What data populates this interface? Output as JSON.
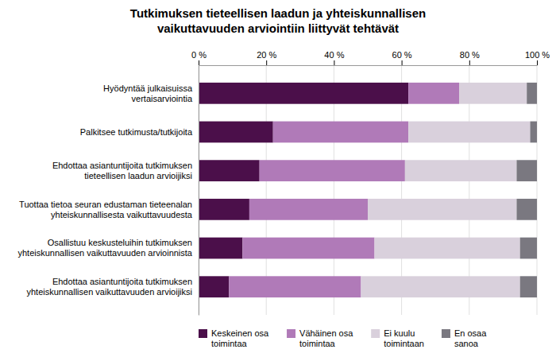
{
  "chart_data": {
    "type": "bar",
    "orientation": "horizontal",
    "stacked": true,
    "title": "Tutkimuksen tieteellisen laadun ja yhteiskunnallisen\nvaikuttavuuden arviointiin liittyvät tehtävät",
    "categories": [
      "Hyödyntää julkaisuissa\nvertaisarviointia",
      "Palkitsee tutkimusta/tutkijoita",
      "Ehdottaa asiantuntijoita tutkimuksen\ntieteellisen laadun arvioijiksi",
      "Tuottaa tietoa seuran edustaman tieteenalan\nyhteiskunnallisesta vaikuttavuudesta",
      "Osallistuu keskusteluihin tutkimuksen\nyhteiskunnallisen vaikuttavuuden arvioinnista",
      "Ehdottaa asiantuntijoita tutkimuksen\nyhteiskunnallisen vaikuttavuuden arvioijiksi"
    ],
    "series": [
      {
        "name": "Keskeinen osa\ntoimintaa",
        "color": "#4b0f4a",
        "values": [
          62,
          22,
          18,
          15,
          13,
          9
        ]
      },
      {
        "name": "Vähäinen osa\ntoimintaa",
        "color": "#b07ab8",
        "values": [
          15,
          40,
          43,
          35,
          39,
          39
        ]
      },
      {
        "name": "Ei kuulu\ntoimintaan",
        "color": "#d9d0dc",
        "values": [
          20,
          36,
          33,
          44,
          43,
          47
        ]
      },
      {
        "name": "En osaa\nsanoa",
        "color": "#7a7880",
        "values": [
          3,
          2,
          6,
          6,
          5,
          5
        ]
      }
    ],
    "xlim": [
      0,
      100
    ],
    "xticks": [
      {
        "value": 0,
        "label": "0 %"
      },
      {
        "value": 20,
        "label": "20 %"
      },
      {
        "value": 40,
        "label": "40 %"
      },
      {
        "value": 60,
        "label": "60 %"
      },
      {
        "value": 80,
        "label": "80 %"
      },
      {
        "value": 100,
        "label": "100 %"
      }
    ],
    "grid": true,
    "legend": "bottom"
  }
}
